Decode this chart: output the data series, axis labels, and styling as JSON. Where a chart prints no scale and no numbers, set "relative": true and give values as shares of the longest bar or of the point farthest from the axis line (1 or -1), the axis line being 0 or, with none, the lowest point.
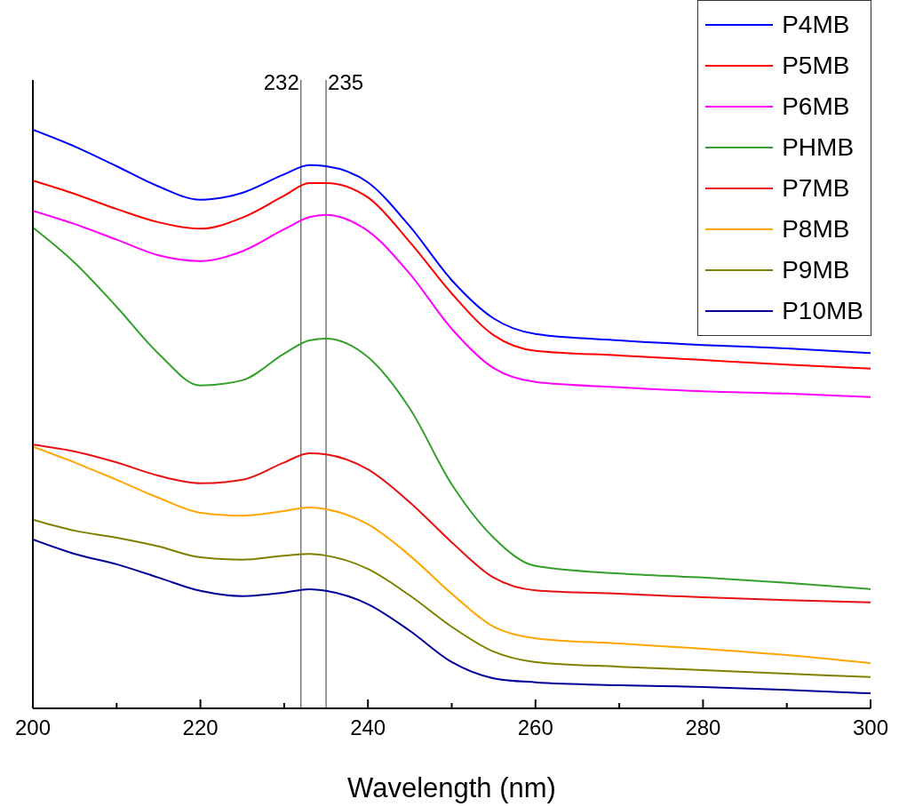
{
  "chart_data": {
    "type": "line",
    "relative": true,
    "xlabel": "Wavelength (nm)",
    "x": [
      200,
      205,
      210,
      215,
      220,
      225,
      230,
      233,
      235,
      240,
      245,
      250,
      255,
      260,
      270,
      280,
      290,
      300
    ],
    "xlim": [
      200,
      300
    ],
    "xticks": [
      200,
      {
        "value": 210,
        "label": null
      },
      220,
      {
        "value": 230,
        "label": null
      },
      240,
      {
        "value": 250,
        "label": null
      },
      260,
      {
        "value": 270,
        "label": null
      },
      280,
      {
        "value": 290,
        "label": null
      },
      300
    ],
    "legend": "top right",
    "marker": "none",
    "line_style": "solid",
    "grid": false,
    "ref_lines": [
      {
        "axis": "x",
        "value": 232,
        "label": "232",
        "color": "#555555"
      },
      {
        "axis": "x",
        "value": 235,
        "label": "235",
        "color": "#555555"
      }
    ],
    "series": [
      {
        "name": "P4MB",
        "color": "#0000ff",
        "values": [
          1,
          0.971,
          0.937,
          0.902,
          0.879,
          0.891,
          0.923,
          0.939,
          0.937,
          0.909,
          0.833,
          0.74,
          0.674,
          0.647,
          0.636,
          0.628,
          0.622,
          0.614
        ]
      },
      {
        "name": "P5MB",
        "color": "#ff0000",
        "values": [
          0.912,
          0.889,
          0.863,
          0.84,
          0.829,
          0.848,
          0.886,
          0.908,
          0.908,
          0.883,
          0.806,
          0.717,
          0.645,
          0.618,
          0.61,
          0.602,
          0.594,
          0.587
        ]
      },
      {
        "name": "P6MB",
        "color": "#ff00ff",
        "values": [
          0.86,
          0.837,
          0.81,
          0.783,
          0.773,
          0.79,
          0.828,
          0.849,
          0.853,
          0.825,
          0.751,
          0.656,
          0.588,
          0.564,
          0.555,
          0.548,
          0.544,
          0.538
        ]
      },
      {
        "name": "PHMB",
        "color": "#33a02c",
        "values": [
          0.831,
          0.77,
          0.694,
          0.613,
          0.558,
          0.567,
          0.613,
          0.636,
          0.639,
          0.607,
          0.518,
          0.387,
          0.295,
          0.246,
          0.233,
          0.226,
          0.217,
          0.206
        ]
      },
      {
        "name": "P7MB",
        "color": "#e81010",
        "values": [
          0.456,
          0.444,
          0.425,
          0.402,
          0.389,
          0.395,
          0.425,
          0.441,
          0.439,
          0.413,
          0.356,
          0.287,
          0.226,
          0.204,
          0.198,
          0.192,
          0.187,
          0.183
        ]
      },
      {
        "name": "P8MB",
        "color": "#ffa500",
        "values": [
          0.452,
          0.425,
          0.395,
          0.364,
          0.338,
          0.333,
          0.341,
          0.347,
          0.344,
          0.318,
          0.264,
          0.198,
          0.141,
          0.121,
          0.112,
          0.103,
          0.092,
          0.078
        ]
      },
      {
        "name": "P9MB",
        "color": "#808000",
        "values": [
          0.326,
          0.307,
          0.295,
          0.28,
          0.261,
          0.257,
          0.264,
          0.267,
          0.264,
          0.241,
          0.195,
          0.141,
          0.098,
          0.08,
          0.072,
          0.066,
          0.06,
          0.054
        ]
      },
      {
        "name": "P10MB",
        "color": "#000099",
        "values": [
          0.292,
          0.267,
          0.249,
          0.226,
          0.203,
          0.194,
          0.2,
          0.206,
          0.203,
          0.18,
          0.134,
          0.08,
          0.052,
          0.045,
          0.04,
          0.037,
          0.032,
          0.026
        ]
      }
    ]
  }
}
